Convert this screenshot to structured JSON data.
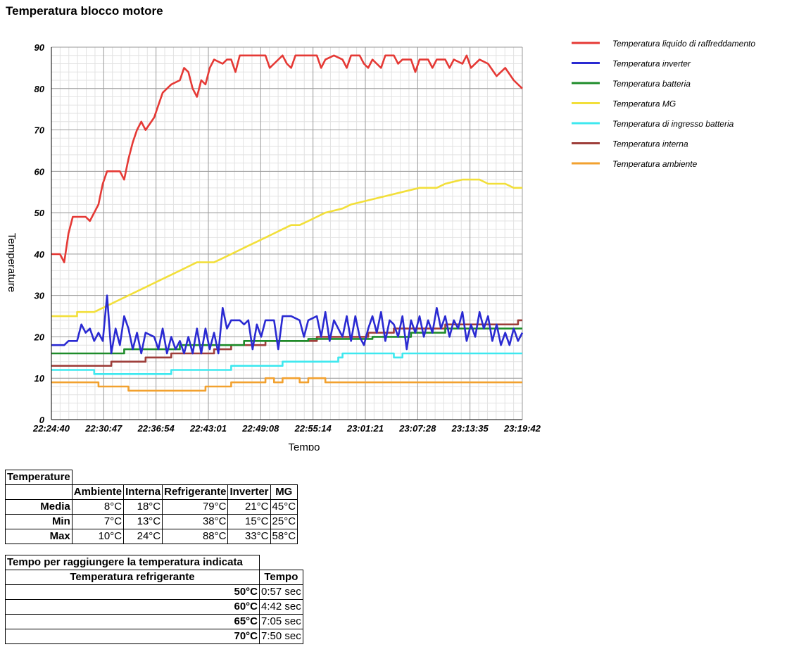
{
  "page": {
    "title": "Temperatura blocco motore"
  },
  "chart_data": {
    "type": "line",
    "title": "",
    "xlabel": "Tempo",
    "ylabel": "Temperature",
    "ylim": [
      0,
      90
    ],
    "yticks": [
      0,
      10,
      20,
      30,
      40,
      50,
      60,
      70,
      80,
      90
    ],
    "xticks": [
      "22:24:40",
      "22:30:47",
      "22:36:54",
      "22:43:01",
      "22:49:08",
      "22:55:14",
      "23:01:21",
      "23:07:28",
      "23:13:35",
      "23:19:42"
    ],
    "xlim_minutes": [
      0,
      55
    ],
    "grid": true,
    "legend_position": "right",
    "series": [
      {
        "name": "Temperatura liquido di raffreddamento",
        "color": "#e53935",
        "points": [
          [
            0,
            40
          ],
          [
            1,
            40
          ],
          [
            1.5,
            38
          ],
          [
            2,
            45
          ],
          [
            2.5,
            49
          ],
          [
            4,
            49
          ],
          [
            4.5,
            48
          ],
          [
            5,
            50
          ],
          [
            5.5,
            52
          ],
          [
            6,
            57
          ],
          [
            6.5,
            60
          ],
          [
            7,
            60
          ],
          [
            8,
            60
          ],
          [
            8.5,
            58
          ],
          [
            9,
            63
          ],
          [
            9.5,
            67
          ],
          [
            10,
            70
          ],
          [
            10.5,
            72
          ],
          [
            11,
            70
          ],
          [
            12,
            73
          ],
          [
            12.5,
            76
          ],
          [
            13,
            79
          ],
          [
            14,
            81
          ],
          [
            15,
            82
          ],
          [
            15.5,
            85
          ],
          [
            16,
            84
          ],
          [
            16.5,
            80
          ],
          [
            17,
            78
          ],
          [
            17.5,
            82
          ],
          [
            18,
            81
          ],
          [
            18.5,
            85
          ],
          [
            19,
            87
          ],
          [
            20,
            86
          ],
          [
            20.5,
            87
          ],
          [
            21,
            87
          ],
          [
            21.5,
            84
          ],
          [
            22,
            88
          ],
          [
            24,
            88
          ],
          [
            25,
            88
          ],
          [
            25.5,
            85
          ],
          [
            26,
            86
          ],
          [
            27,
            88
          ],
          [
            27.5,
            86
          ],
          [
            28,
            85
          ],
          [
            28.5,
            88
          ],
          [
            30,
            88
          ],
          [
            31,
            88
          ],
          [
            31.5,
            85
          ],
          [
            32,
            87
          ],
          [
            33,
            88
          ],
          [
            34,
            87
          ],
          [
            34.5,
            85
          ],
          [
            35,
            88
          ],
          [
            36,
            88
          ],
          [
            36.5,
            86
          ],
          [
            37,
            85
          ],
          [
            37.5,
            87
          ],
          [
            38,
            86
          ],
          [
            38.5,
            85
          ],
          [
            39,
            88
          ],
          [
            40,
            88
          ],
          [
            40.5,
            86
          ],
          [
            41,
            87
          ],
          [
            42,
            87
          ],
          [
            42.5,
            84
          ],
          [
            43,
            87
          ],
          [
            44,
            87
          ],
          [
            44.5,
            85
          ],
          [
            45,
            87
          ],
          [
            46,
            87
          ],
          [
            46.5,
            85
          ],
          [
            47,
            87
          ],
          [
            48,
            86
          ],
          [
            48.5,
            88
          ],
          [
            49,
            85
          ],
          [
            50,
            87
          ],
          [
            51,
            86
          ],
          [
            52,
            83
          ],
          [
            53,
            85
          ],
          [
            54,
            82
          ],
          [
            55,
            80
          ]
        ]
      },
      {
        "name": "Temperatura inverter",
        "color": "#2a2ad2",
        "points": [
          [
            0,
            18
          ],
          [
            1.5,
            18
          ],
          [
            2,
            19
          ],
          [
            3,
            19
          ],
          [
            3.5,
            23
          ],
          [
            4,
            21
          ],
          [
            4.5,
            22
          ],
          [
            5,
            19
          ],
          [
            5.5,
            21
          ],
          [
            6,
            19
          ],
          [
            6.5,
            30
          ],
          [
            7,
            16
          ],
          [
            7.5,
            22
          ],
          [
            8,
            18
          ],
          [
            8.5,
            25
          ],
          [
            9,
            22
          ],
          [
            9.5,
            17
          ],
          [
            10,
            21
          ],
          [
            10.5,
            16
          ],
          [
            11,
            21
          ],
          [
            12,
            20
          ],
          [
            12.5,
            17
          ],
          [
            13,
            22
          ],
          [
            13.5,
            16
          ],
          [
            14,
            20
          ],
          [
            14.5,
            17
          ],
          [
            15,
            19
          ],
          [
            15.5,
            16
          ],
          [
            16,
            20
          ],
          [
            16.5,
            16
          ],
          [
            17,
            22
          ],
          [
            17.5,
            16
          ],
          [
            18,
            22
          ],
          [
            18.5,
            17
          ],
          [
            19,
            21
          ],
          [
            19.5,
            16
          ],
          [
            20,
            27
          ],
          [
            20.5,
            22
          ],
          [
            21,
            24
          ],
          [
            22,
            24
          ],
          [
            22.5,
            23
          ],
          [
            23,
            24
          ],
          [
            23.5,
            17
          ],
          [
            24,
            23
          ],
          [
            24.5,
            20
          ],
          [
            25,
            24
          ],
          [
            26,
            24
          ],
          [
            26.5,
            17
          ],
          [
            27,
            25
          ],
          [
            28,
            25
          ],
          [
            29,
            24
          ],
          [
            29.5,
            20
          ],
          [
            30,
            24
          ],
          [
            31,
            25
          ],
          [
            31.5,
            20
          ],
          [
            32,
            26
          ],
          [
            32.5,
            19
          ],
          [
            33,
            24
          ],
          [
            34,
            20
          ],
          [
            34.5,
            25
          ],
          [
            35,
            19
          ],
          [
            35.5,
            25
          ],
          [
            36,
            20
          ],
          [
            36.5,
            18
          ],
          [
            37,
            22
          ],
          [
            37.5,
            25
          ],
          [
            38,
            21
          ],
          [
            38.5,
            26
          ],
          [
            39,
            19
          ],
          [
            39.5,
            24
          ],
          [
            40,
            23
          ],
          [
            40.5,
            20
          ],
          [
            41,
            25
          ],
          [
            41.5,
            17
          ],
          [
            42,
            24
          ],
          [
            42.5,
            21
          ],
          [
            43,
            25
          ],
          [
            43.5,
            20
          ],
          [
            44,
            24
          ],
          [
            44.5,
            21
          ],
          [
            45,
            27
          ],
          [
            45.5,
            22
          ],
          [
            46,
            25
          ],
          [
            46.5,
            20
          ],
          [
            47,
            24
          ],
          [
            47.5,
            22
          ],
          [
            48,
            26
          ],
          [
            48.5,
            19
          ],
          [
            49,
            23
          ],
          [
            49.5,
            20
          ],
          [
            50,
            26
          ],
          [
            50.5,
            22
          ],
          [
            51,
            25
          ],
          [
            51.5,
            19
          ],
          [
            52,
            23
          ],
          [
            52.5,
            18
          ],
          [
            53,
            21
          ],
          [
            53.5,
            18
          ],
          [
            54,
            22
          ],
          [
            54.5,
            19
          ],
          [
            55,
            21
          ]
        ]
      },
      {
        "name": "Temperatura batteria",
        "color": "#1e8c2a",
        "points": [
          [
            0,
            16
          ],
          [
            8.5,
            16
          ],
          [
            8.5,
            17
          ],
          [
            15,
            17
          ],
          [
            15,
            18
          ],
          [
            22.5,
            18
          ],
          [
            22.5,
            19
          ],
          [
            30,
            19
          ],
          [
            30,
            19.5
          ],
          [
            37.5,
            19.5
          ],
          [
            37.5,
            20
          ],
          [
            42,
            20
          ],
          [
            42,
            21
          ],
          [
            46,
            21
          ],
          [
            46,
            22
          ],
          [
            55,
            22
          ]
        ]
      },
      {
        "name": "Temperatura MG",
        "color": "#f2df3a",
        "points": [
          [
            0,
            25
          ],
          [
            3,
            25
          ],
          [
            3,
            26
          ],
          [
            5,
            26
          ],
          [
            6,
            27
          ],
          [
            7,
            28
          ],
          [
            8,
            29
          ],
          [
            9,
            30
          ],
          [
            10,
            31
          ],
          [
            11,
            32
          ],
          [
            12,
            33
          ],
          [
            13,
            34
          ],
          [
            14,
            35
          ],
          [
            15,
            36
          ],
          [
            16,
            37
          ],
          [
            17,
            38
          ],
          [
            19,
            38
          ],
          [
            20,
            39
          ],
          [
            21,
            40
          ],
          [
            22,
            41
          ],
          [
            23,
            42
          ],
          [
            24,
            43
          ],
          [
            25,
            44
          ],
          [
            26,
            45
          ],
          [
            27,
            46
          ],
          [
            28,
            47
          ],
          [
            29,
            47
          ],
          [
            30,
            48
          ],
          [
            31,
            49
          ],
          [
            32,
            50
          ],
          [
            34,
            51
          ],
          [
            35,
            52
          ],
          [
            37,
            53
          ],
          [
            39,
            54
          ],
          [
            41,
            55
          ],
          [
            43,
            56
          ],
          [
            45,
            56
          ],
          [
            46,
            57
          ],
          [
            48,
            58
          ],
          [
            50,
            58
          ],
          [
            51,
            57
          ],
          [
            53,
            57
          ],
          [
            54,
            56
          ],
          [
            55,
            56
          ]
        ]
      },
      {
        "name": "Temperatura di ingresso batteria",
        "color": "#3ee8ef",
        "points": [
          [
            0,
            12
          ],
          [
            5,
            12
          ],
          [
            5,
            11
          ],
          [
            14,
            11
          ],
          [
            14,
            12
          ],
          [
            21,
            12
          ],
          [
            21,
            13
          ],
          [
            27,
            13
          ],
          [
            27,
            14
          ],
          [
            33.5,
            14
          ],
          [
            33.5,
            15
          ],
          [
            34,
            15
          ],
          [
            34,
            16
          ],
          [
            40,
            16
          ],
          [
            40,
            15
          ],
          [
            41,
            15
          ],
          [
            41,
            16
          ],
          [
            55,
            16
          ]
        ]
      },
      {
        "name": "Temperatura interna",
        "color": "#9e3e3a",
        "points": [
          [
            0,
            13
          ],
          [
            7,
            13
          ],
          [
            7,
            14
          ],
          [
            11,
            14
          ],
          [
            11,
            15
          ],
          [
            14,
            15
          ],
          [
            14,
            16
          ],
          [
            19,
            16
          ],
          [
            19,
            17
          ],
          [
            21,
            17
          ],
          [
            21,
            18
          ],
          [
            25,
            18
          ],
          [
            25,
            19
          ],
          [
            31,
            19
          ],
          [
            31,
            20
          ],
          [
            37,
            20
          ],
          [
            37,
            21
          ],
          [
            40,
            21
          ],
          [
            40,
            22
          ],
          [
            46,
            22
          ],
          [
            46,
            23
          ],
          [
            54.5,
            23
          ],
          [
            54.5,
            24
          ],
          [
            55,
            24
          ]
        ]
      },
      {
        "name": "Temperatura ambiente",
        "color": "#f2a12f",
        "points": [
          [
            0,
            9
          ],
          [
            5.5,
            9
          ],
          [
            5.5,
            8
          ],
          [
            9,
            8
          ],
          [
            9,
            7
          ],
          [
            18,
            7
          ],
          [
            18,
            8
          ],
          [
            21,
            8
          ],
          [
            21,
            9
          ],
          [
            25,
            9
          ],
          [
            25,
            10
          ],
          [
            26,
            10
          ],
          [
            26,
            9
          ],
          [
            27,
            9
          ],
          [
            27,
            10
          ],
          [
            29,
            10
          ],
          [
            29,
            9
          ],
          [
            30,
            9
          ],
          [
            30,
            10
          ],
          [
            32,
            10
          ],
          [
            32,
            9
          ],
          [
            55,
            9
          ]
        ]
      }
    ]
  },
  "table_temperature": {
    "caption": "Temperature",
    "headers": [
      "Ambiente",
      "Interna",
      "Refrigerante",
      "Inverter",
      "MG"
    ],
    "rows": [
      {
        "label": "Media",
        "values": [
          "8°C",
          "18°C",
          "79°C",
          "21°C",
          "45°C"
        ]
      },
      {
        "label": "Min",
        "values": [
          "7°C",
          "13°C",
          "38°C",
          "15°C",
          "25°C"
        ]
      },
      {
        "label": "Max",
        "values": [
          "10°C",
          "24°C",
          "88°C",
          "33°C",
          "58°C"
        ]
      }
    ]
  },
  "table_tempo": {
    "caption": "Tempo per raggiungere la temperatura indicata",
    "header_temp": "Temperatura refrigerante",
    "header_time": "Tempo",
    "rows": [
      {
        "temp": "50°C",
        "time": "0:57 sec"
      },
      {
        "temp": "60°C",
        "time": "4:42 sec"
      },
      {
        "temp": "65°C",
        "time": "7:05 sec"
      },
      {
        "temp": "70°C",
        "time": "7:50 sec"
      }
    ]
  }
}
